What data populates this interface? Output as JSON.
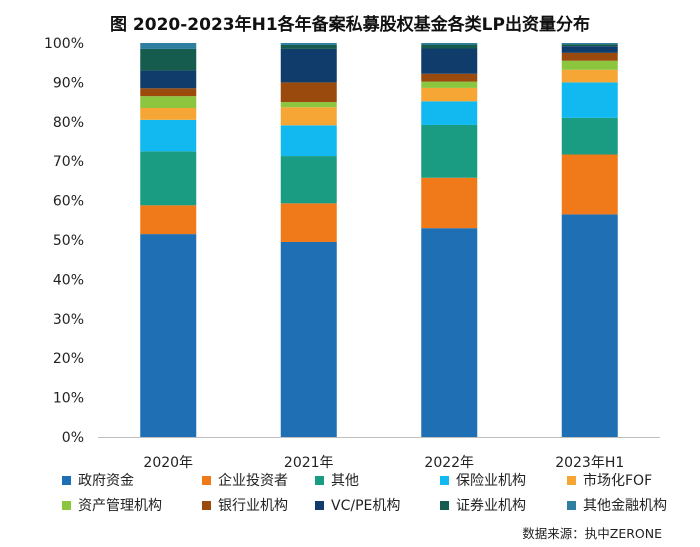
{
  "chart_data": {
    "type": "bar",
    "stacked": true,
    "title": "图 2020-2023年H1各年备案私募股权基金各类LP出资量分布",
    "categories": [
      "2020年",
      "2021年",
      "2022年",
      "2023年H1"
    ],
    "ylim": [
      0,
      100
    ],
    "yticks": [
      "0%",
      "10%",
      "20%",
      "30%",
      "40%",
      "50%",
      "60%",
      "70%",
      "80%",
      "90%",
      "100%"
    ],
    "grid": false,
    "legend_position": "bottom",
    "series": [
      {
        "name": "政府资金",
        "color": "#1F6FB5",
        "values": [
          51.5,
          49.5,
          53.0,
          56.5
        ]
      },
      {
        "name": "企业投资者",
        "color": "#F07A1A",
        "values": [
          7.3,
          9.8,
          12.8,
          15.2
        ]
      },
      {
        "name": "其他",
        "color": "#1A9C82",
        "values": [
          13.7,
          12.0,
          13.4,
          9.3
        ]
      },
      {
        "name": "保险业机构",
        "color": "#11B9F0",
        "values": [
          8.0,
          7.8,
          6.0,
          9.0
        ]
      },
      {
        "name": "市场化FOF",
        "color": "#F6A634",
        "values": [
          3.0,
          4.6,
          3.4,
          3.2
        ]
      },
      {
        "name": "资产管理机构",
        "color": "#8CC63F",
        "values": [
          3.0,
          1.3,
          1.6,
          2.3
        ]
      },
      {
        "name": "银行业机构",
        "color": "#9B4A0E",
        "values": [
          2.0,
          5.0,
          2.0,
          2.0
        ]
      },
      {
        "name": "VC/PE机构",
        "color": "#0F3C6B",
        "values": [
          4.5,
          8.5,
          6.4,
          1.7
        ]
      },
      {
        "name": "证券业机构",
        "color": "#155C4F",
        "values": [
          5.5,
          1.0,
          1.0,
          0.5
        ]
      },
      {
        "name": "其他金融机构",
        "color": "#2E7FA0",
        "values": [
          1.5,
          0.5,
          0.4,
          0.3
        ]
      }
    ]
  },
  "source_note": "数据来源：执中ZERONE"
}
